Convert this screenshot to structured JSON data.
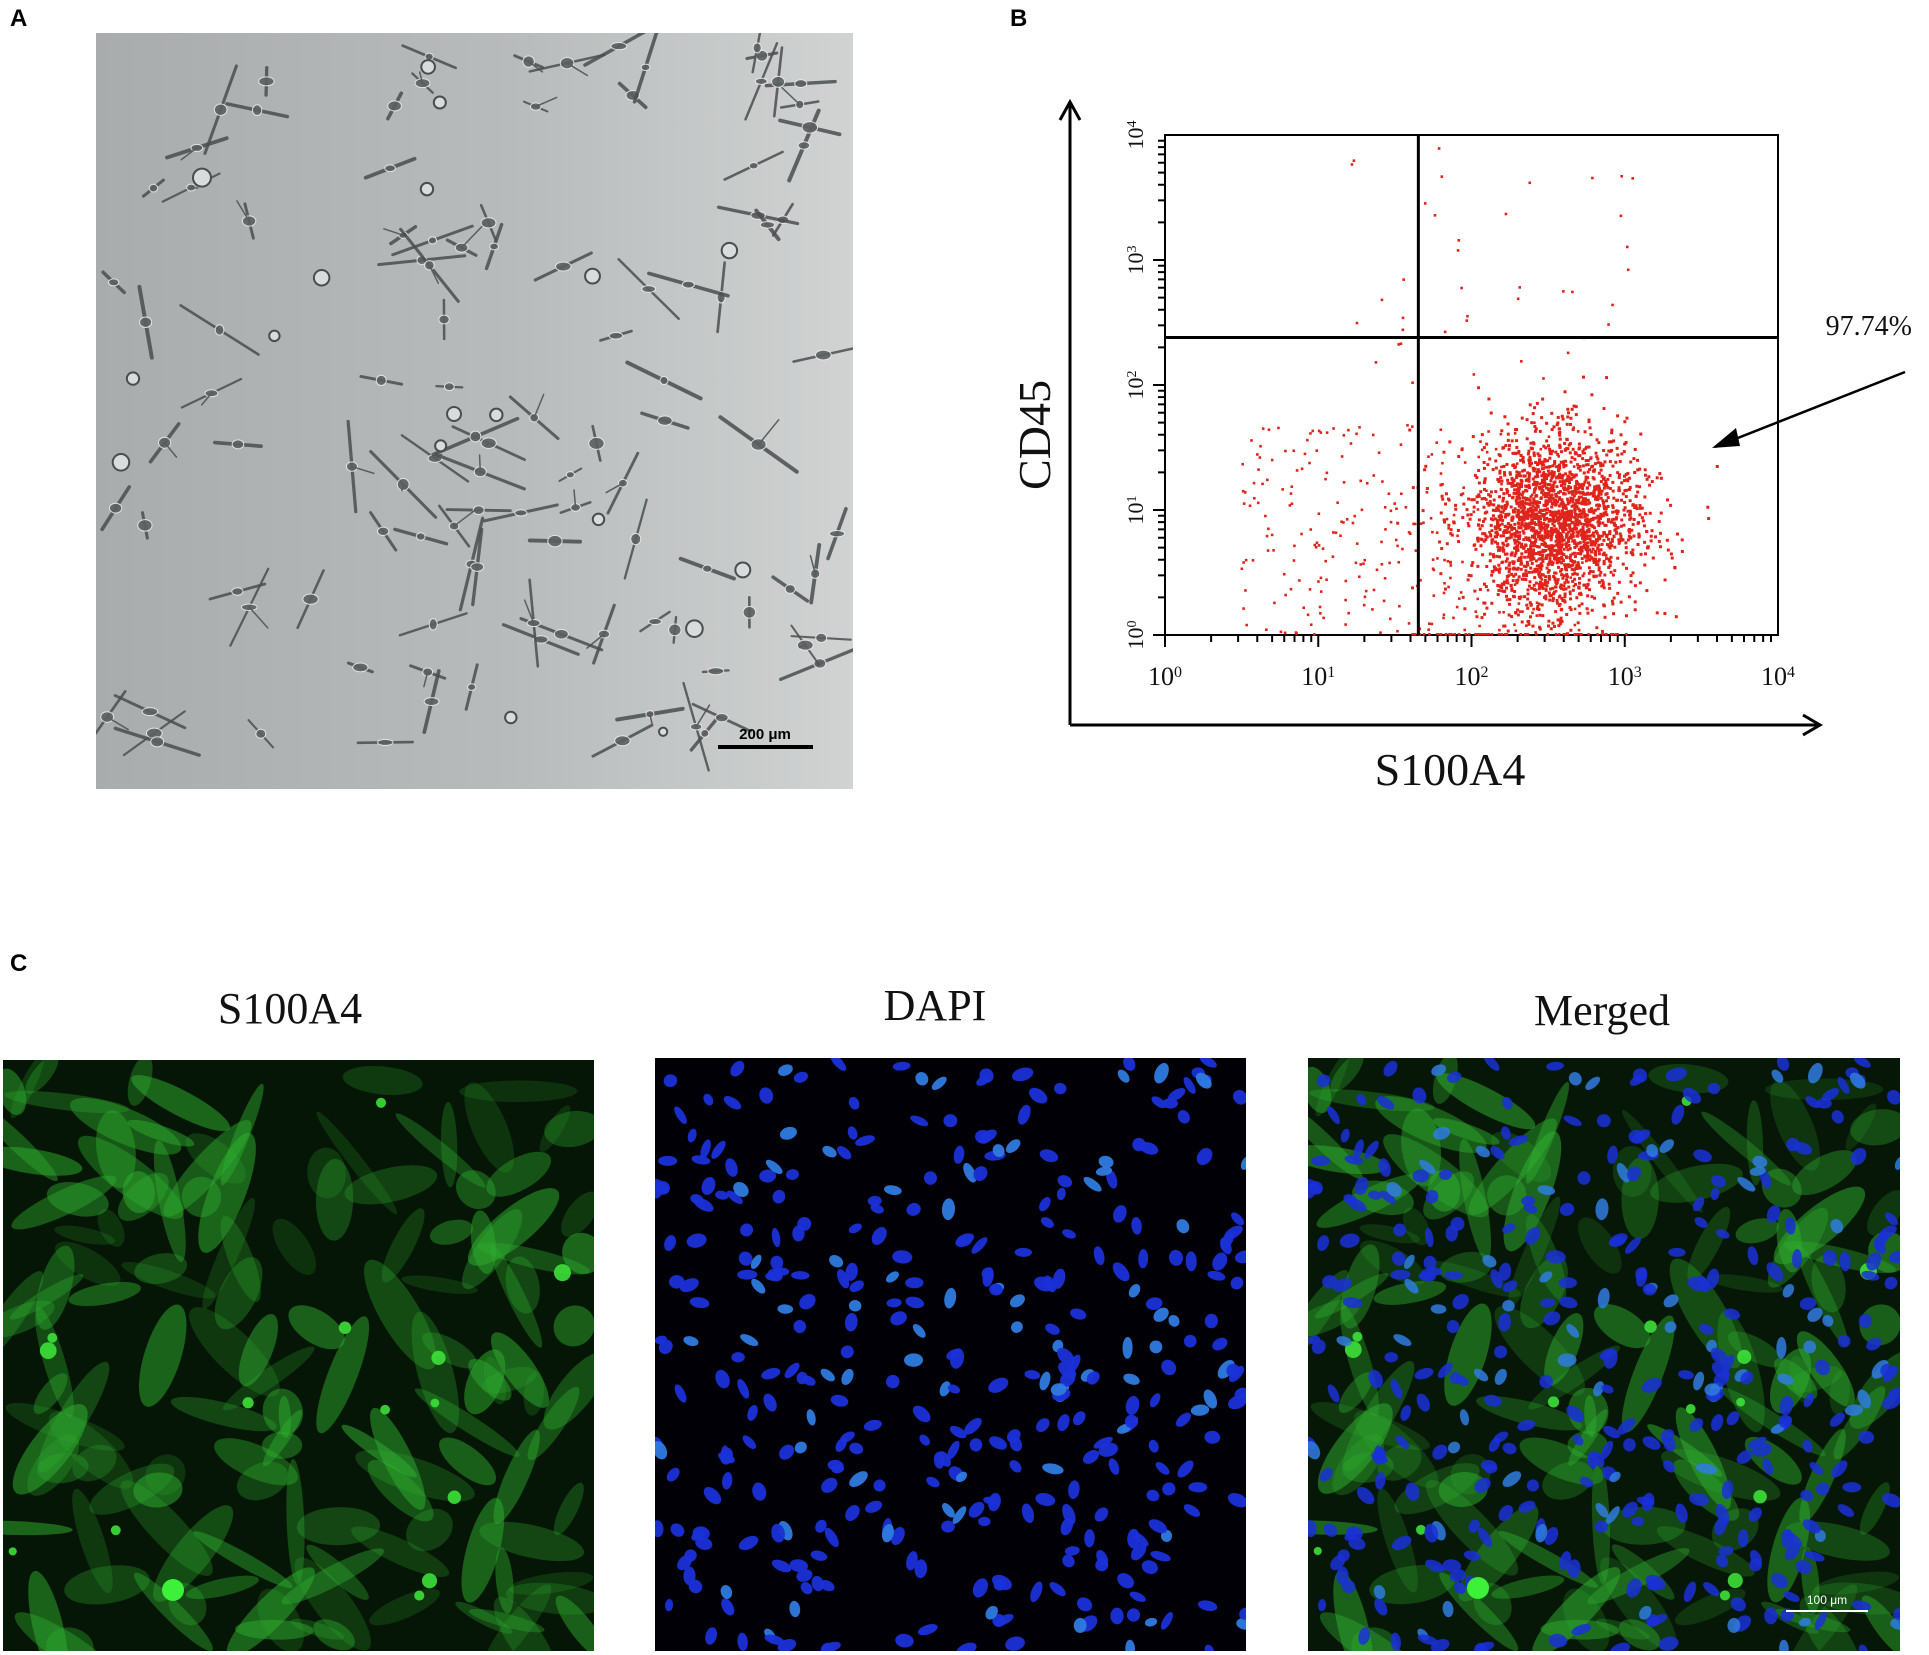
{
  "panels": {
    "a": {
      "letter": "A",
      "scale_bar": "200 μm"
    },
    "b": {
      "letter": "B"
    },
    "c": {
      "letter": "C",
      "scale_bar": "100 μm"
    }
  },
  "labels_c": {
    "s100a4": "S100A4",
    "dapi": "DAPI",
    "merged": "Merged"
  },
  "colors": {
    "phase_bg": "#b9bcbd",
    "dot": "#e0241b",
    "green": "#1f9a25",
    "blue": "#1c2fd6"
  },
  "chart_data": {
    "type": "scatter",
    "xlabel": "S100A4",
    "ylabel": "CD45",
    "x_scale": "log",
    "y_scale": "log",
    "xlim": [
      1,
      10000
    ],
    "ylim": [
      1,
      10000
    ],
    "x_ticks": [
      "10^0",
      "10^1",
      "10^2",
      "10^3",
      "10^4"
    ],
    "y_ticks": [
      "10^0",
      "10^1",
      "10^2",
      "10^3",
      "10^4"
    ],
    "quadrant_gates": {
      "x": 45,
      "y": 240
    },
    "annotation": "97.74%",
    "cluster_center": [
      350,
      8
    ]
  }
}
